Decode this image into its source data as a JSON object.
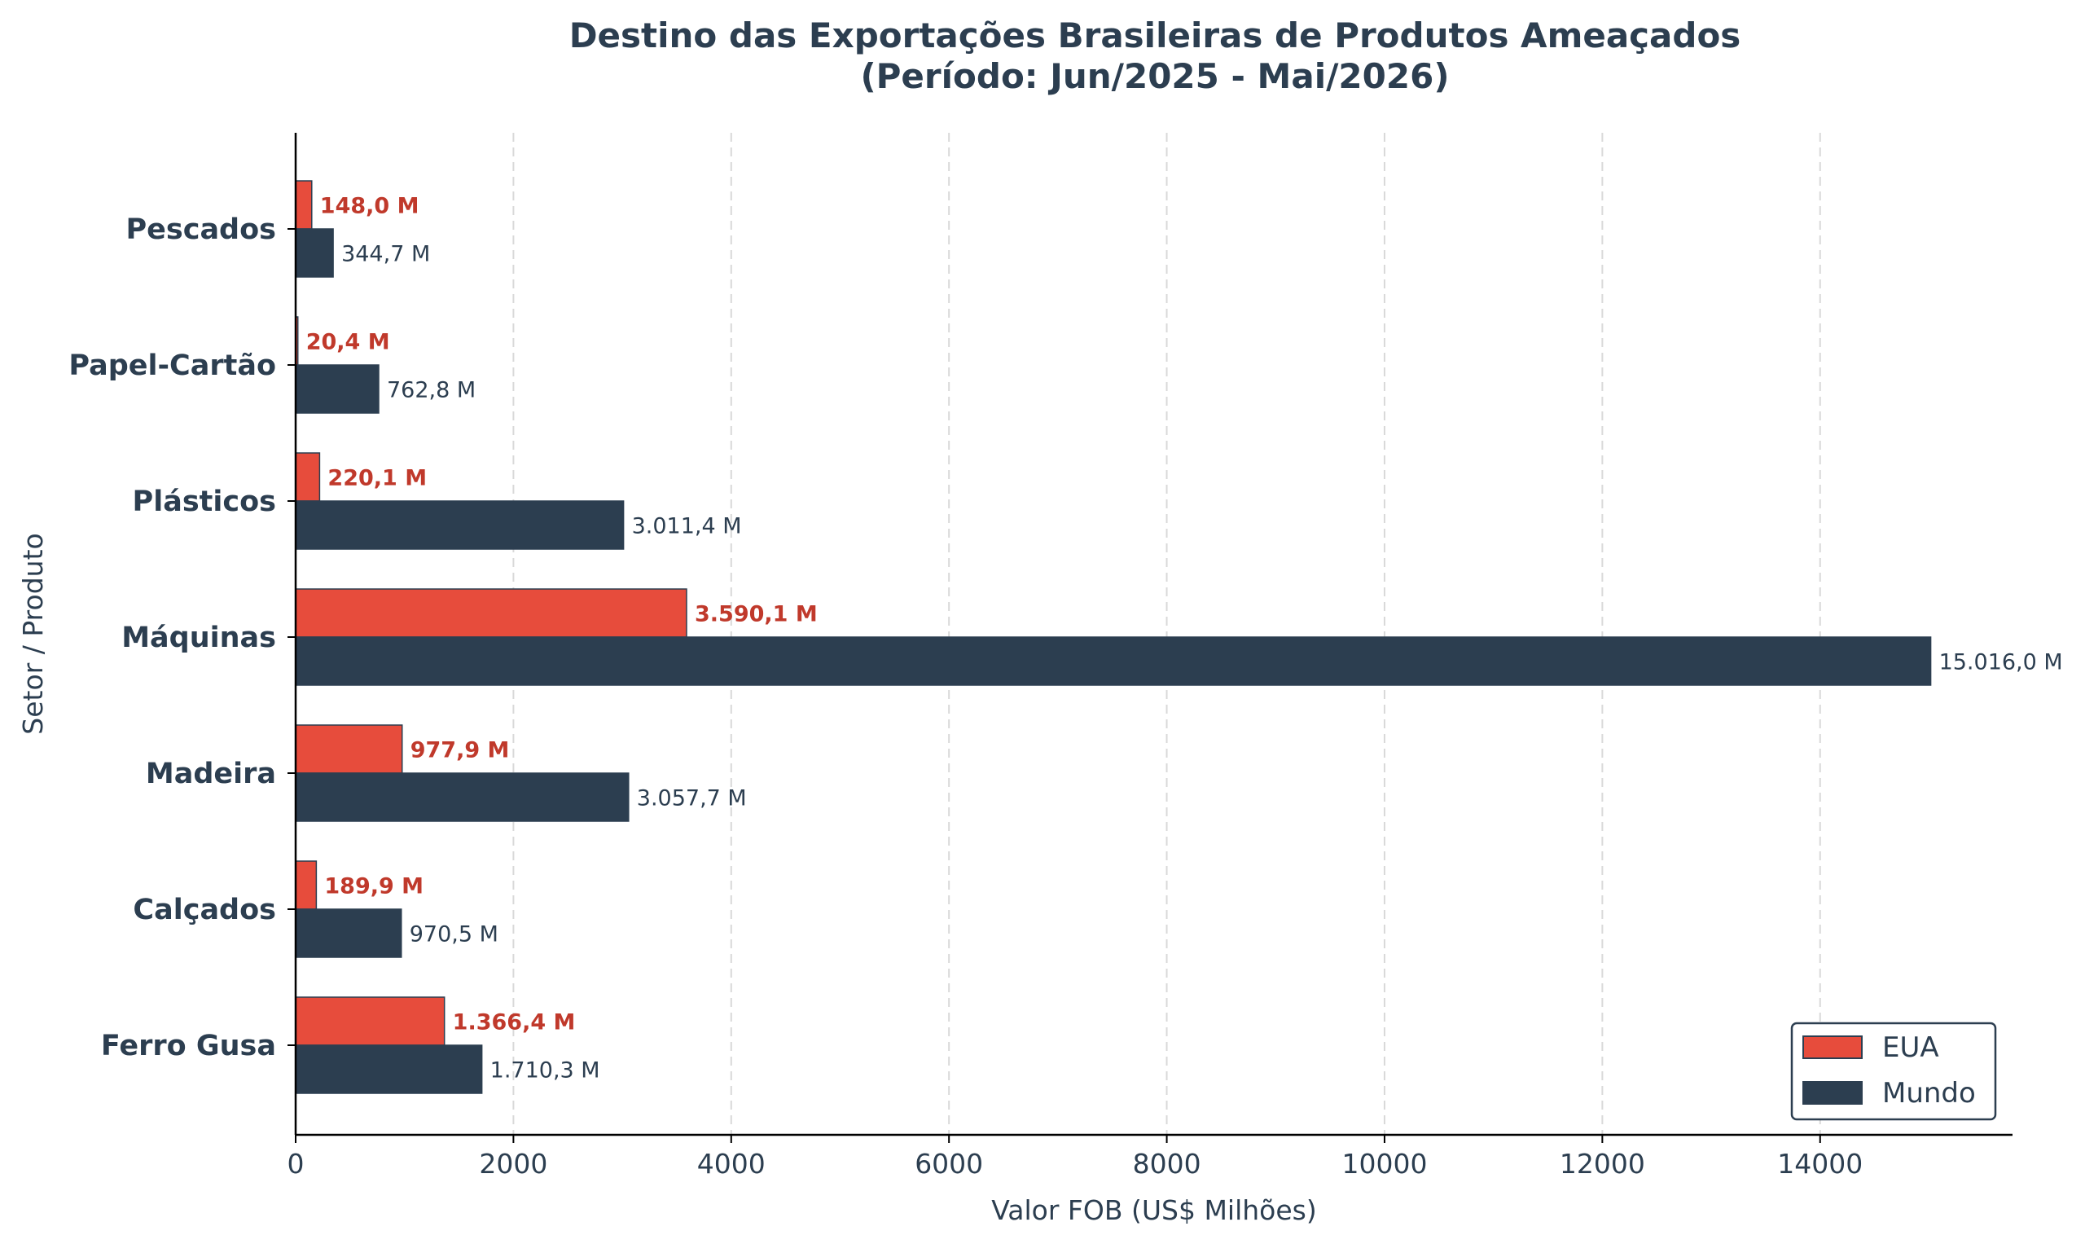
{
  "chart_data": {
    "type": "bar",
    "orientation": "horizontal",
    "title": "Destino das Exportações Brasileiras de Produtos Ameaçados",
    "subtitle": "(Período: Jun/2025 - Mai/2026)",
    "xlabel": "Valor FOB (US$ Milhões)",
    "ylabel": "Setor / Produto",
    "xlim": [
      0,
      15767
    ],
    "xticks": [
      0,
      2000,
      4000,
      6000,
      8000,
      10000,
      12000,
      14000
    ],
    "grid": "vertical-dashed",
    "legend_position": "bottom-right",
    "categories": [
      "Pescados",
      "Papel-Cartão",
      "Plásticos",
      "Máquinas",
      "Madeira",
      "Calçados",
      "Ferro Gusa"
    ],
    "series": [
      {
        "name": "EUA",
        "color": "#e74c3c",
        "label_color": "#c0392b",
        "values": [
          148.0,
          20.4,
          220.1,
          3590.1,
          977.9,
          189.9,
          1366.4
        ],
        "labels": [
          "148,0 M",
          "20,4 M",
          "220,1 M",
          "3.590,1 M",
          "977,9 M",
          "189,9 M",
          "1.366,4 M"
        ]
      },
      {
        "name": "Mundo",
        "color": "#2c3e50",
        "label_color": "#2c3e50",
        "values": [
          344.7,
          762.8,
          3011.4,
          15016.0,
          3057.7,
          970.5,
          1710.3
        ],
        "labels": [
          "344,7 M",
          "762,8 M",
          "3.011,4 M",
          "15.016,0 M",
          "3.057,7 M",
          "970,5 M",
          "1.710,3 M"
        ]
      }
    ]
  }
}
